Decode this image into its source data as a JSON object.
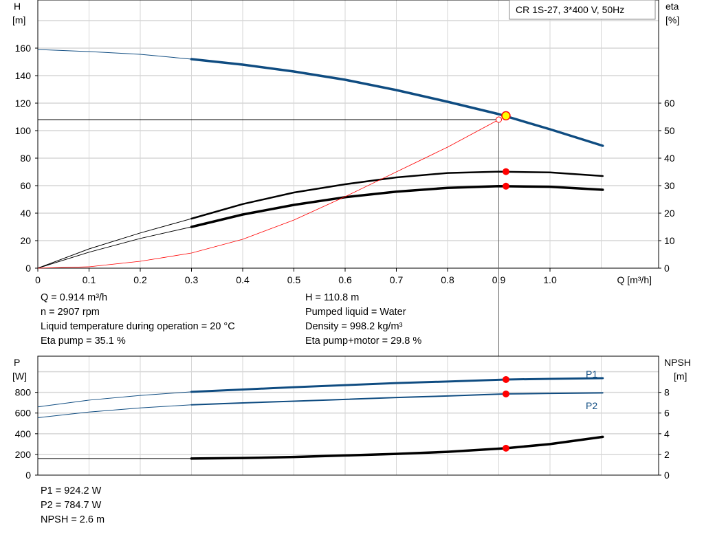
{
  "title": "CR 1S-27, 3*400 V, 50Hz",
  "colors": {
    "head": "#0f4c81",
    "power": "#0f4c81",
    "eta": "#000000",
    "system": "#ff0000",
    "point": "#ff0000",
    "duty": "#ffff00"
  },
  "chart_data": [
    {
      "type": "line",
      "xlabel": "Q [m³/h]",
      "ylabel": "H\n[m]",
      "y2label": "eta\n[%]",
      "xlim": [
        0,
        1.2
      ],
      "ylim": [
        0,
        195
      ],
      "y2lim": [
        0,
        97.5
      ],
      "xticks": [
        "0",
        "0.1",
        "0.2",
        "0.3",
        "0.4",
        "0.5",
        "0.6",
        "0.7",
        "0.8",
        "0.9",
        "1.0"
      ],
      "yticks": [
        "0",
        "20",
        "40",
        "60",
        "80",
        "100",
        "120",
        "140",
        "160"
      ],
      "y2ticks": [
        "0",
        "10",
        "20",
        "30",
        "40",
        "50",
        "60"
      ],
      "grid": true,
      "series": [
        {
          "key": "H",
          "axis": "left",
          "x": [
            0,
            0.1,
            0.2,
            0.3,
            0.4,
            0.5,
            0.6,
            0.7,
            0.8,
            0.9,
            1.0,
            1.103
          ],
          "y": [
            159,
            157.5,
            155.5,
            152,
            148,
            143,
            137,
            129.5,
            121,
            112,
            101,
            89
          ]
        },
        {
          "key": "eta_pump",
          "axis": "right",
          "x": [
            0,
            0.1,
            0.2,
            0.3,
            0.4,
            0.5,
            0.6,
            0.7,
            0.8,
            0.9,
            1.0,
            1.103
          ],
          "y": [
            0,
            7,
            12.8,
            18,
            23.3,
            27.5,
            30.5,
            33,
            34.6,
            35.1,
            34.8,
            33.5
          ]
        },
        {
          "key": "eta_pump_motor",
          "axis": "right",
          "x": [
            0,
            0.1,
            0.2,
            0.3,
            0.4,
            0.5,
            0.6,
            0.7,
            0.8,
            0.9,
            1.0,
            1.103
          ],
          "y": [
            0,
            5.8,
            10.8,
            15,
            19.5,
            23,
            25.8,
            27.8,
            29.2,
            29.8,
            29.6,
            28.5
          ]
        },
        {
          "key": "system",
          "axis": "left",
          "x": [
            0,
            0.1,
            0.2,
            0.3,
            0.4,
            0.5,
            0.6,
            0.7,
            0.8,
            0.9
          ],
          "y": [
            0,
            1,
            5,
            11,
            21,
            35,
            52,
            70,
            88,
            108
          ]
        }
      ],
      "duty_point": {
        "Q": 0.914,
        "H": 110.8,
        "eta_pump": 35.1,
        "eta_pump_motor": 29.8
      },
      "requested_point": {
        "Q": 0.9,
        "H": 108
      }
    },
    {
      "type": "line",
      "ylabel": "P\n[W]",
      "y2label": "NPSH\n[m]",
      "xlim": [
        0,
        1.2
      ],
      "ylim": [
        0,
        1150
      ],
      "y2lim": [
        0,
        11.5
      ],
      "yticks": [
        "0",
        "200",
        "400",
        "600",
        "800"
      ],
      "y2ticks": [
        "0",
        "2",
        "4",
        "6",
        "8"
      ],
      "grid": true,
      "series": [
        {
          "name": "P1",
          "axis": "left",
          "x": [
            0,
            0.1,
            0.2,
            0.3,
            0.4,
            0.5,
            0.6,
            0.7,
            0.8,
            0.914,
            1.0,
            1.103
          ],
          "y": [
            660,
            725,
            770,
            805,
            828,
            850,
            870,
            890,
            905,
            924,
            931,
            937
          ]
        },
        {
          "name": "P2",
          "axis": "left",
          "x": [
            0,
            0.1,
            0.2,
            0.3,
            0.4,
            0.5,
            0.6,
            0.7,
            0.8,
            0.914,
            1.0,
            1.103
          ],
          "y": [
            555,
            610,
            650,
            680,
            698,
            715,
            732,
            750,
            765,
            785,
            790,
            795
          ]
        },
        {
          "key": "NPSH",
          "axis": "right",
          "x": [
            0,
            0.1,
            0.2,
            0.3,
            0.4,
            0.5,
            0.6,
            0.7,
            0.8,
            0.914,
            1.0,
            1.103
          ],
          "y": [
            1.6,
            1.6,
            1.6,
            1.6,
            1.65,
            1.75,
            1.9,
            2.05,
            2.25,
            2.6,
            3.0,
            3.7
          ]
        }
      ],
      "duty_point": {
        "Q": 0.914,
        "P1": 924.2,
        "P2": 784.7,
        "NPSH": 2.6
      }
    }
  ],
  "info_top": {
    "left": [
      "Q = 0.914 m³/h",
      "n = 2907 rpm",
      "Liquid temperature during operation = 20 °C",
      "Eta pump = 35.1 %"
    ],
    "right": [
      "H = 110.8 m",
      "Pumped liquid = Water",
      "Density = 998.2 kg/m³",
      "Eta pump+motor = 29.8 %"
    ]
  },
  "info_bottom": [
    "P1 = 924.2 W",
    "P2 = 784.7 W",
    "NPSH = 2.6 m"
  ]
}
